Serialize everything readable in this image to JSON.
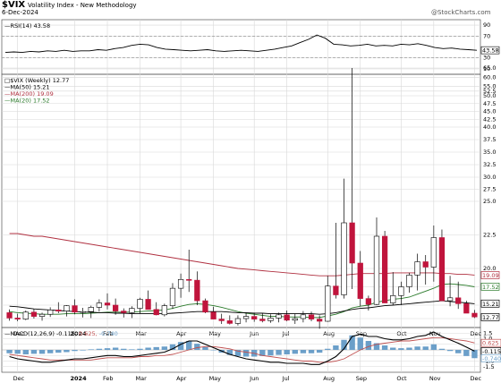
{
  "header": {
    "title": "$VIX",
    "subtitle": "Volatility Index - New Methodology",
    "date": "6-Dec-2024",
    "credit": "@StockCharts.com"
  },
  "colors": {
    "up_candle": "#ffffff",
    "down_candle": "#c0143c",
    "ma50": "#000000",
    "ma200": "#b03040",
    "ma20": "#2a7a2a",
    "rsi_line": "#000000",
    "macd_line": "#000000",
    "macd_signal": "#c05050",
    "macd_hist": "#6b9fc9",
    "grid": "#d8d8d8"
  },
  "chart_data": [
    {
      "type": "line",
      "panel": "rsi",
      "legend": "RSI(14) 43.58",
      "last_value": "43.58",
      "ylim": [
        0,
        100
      ],
      "y_ticks": [
        "90",
        "70",
        "30",
        "10"
      ],
      "levels": [
        70,
        30
      ],
      "values": [
        40,
        41,
        40,
        42,
        41,
        43,
        42,
        44,
        42,
        43,
        43,
        45,
        44,
        47,
        49,
        53,
        55,
        54,
        49,
        46,
        45,
        44,
        43,
        44,
        45,
        43,
        42,
        43,
        44,
        43,
        42,
        44,
        46,
        49,
        52,
        58,
        64,
        72,
        66,
        55,
        54,
        52,
        53,
        55,
        52,
        53,
        52,
        55,
        54,
        56,
        53,
        49,
        47,
        48,
        46,
        45,
        44
      ]
    },
    {
      "type": "candlestick",
      "panel": "price",
      "legend": {
        "title": "$VIX (Weekly) 12.77",
        "series": [
          "MA(50) 15.21",
          "MA(200) 19.09",
          "MA(20) 17.52"
        ]
      },
      "y_ticks": [
        "65.0",
        "60.0",
        "55.0",
        "52.5",
        "50.0",
        "47.5",
        "45.0",
        "42.5",
        "40.0",
        "37.5",
        "35.0",
        "32.5",
        "30.0",
        "27.5",
        "25.0",
        "22.5",
        "20.0",
        "17.5",
        "15.0",
        "12.5"
      ],
      "value_labels": [
        "19.09",
        "17.52",
        "15.21",
        "12.77"
      ],
      "x_ticks": [
        "Dec",
        "2024",
        "Feb",
        "Mar",
        "Apr",
        "May",
        "Jun",
        "Jul",
        "Aug",
        "Sep",
        "Oct",
        "Nov",
        "Dec"
      ],
      "ohlc": [
        [
          13.6,
          14.2,
          12.1,
          12.6
        ],
        [
          12.6,
          13.4,
          12.0,
          12.4
        ],
        [
          12.4,
          14.0,
          12.2,
          13.7
        ],
        [
          13.7,
          14.3,
          12.5,
          12.9
        ],
        [
          12.9,
          13.6,
          12.1,
          13.3
        ],
        [
          13.3,
          14.6,
          12.8,
          14.1
        ],
        [
          14.1,
          15.4,
          13.5,
          13.9
        ],
        [
          13.9,
          15.0,
          12.9,
          14.9
        ],
        [
          14.9,
          15.8,
          13.3,
          13.7
        ],
        [
          13.7,
          14.5,
          12.7,
          13.8
        ],
        [
          13.8,
          14.9,
          12.6,
          14.6
        ],
        [
          14.6,
          15.8,
          13.8,
          15.3
        ],
        [
          15.3,
          16.6,
          14.2,
          15.0
        ],
        [
          15.0,
          15.9,
          13.2,
          13.9
        ],
        [
          13.9,
          14.4,
          12.7,
          13.6
        ],
        [
          13.6,
          14.8,
          12.6,
          14.4
        ],
        [
          14.4,
          16.0,
          13.5,
          15.8
        ],
        [
          15.8,
          17.0,
          14.5,
          14.2
        ],
        [
          14.2,
          15.4,
          13.1,
          13.2
        ],
        [
          13.2,
          15.2,
          12.9,
          14.9
        ],
        [
          14.9,
          18.0,
          14.3,
          17.3
        ],
        [
          17.3,
          19.3,
          16.0,
          18.5
        ],
        [
          18.5,
          21.4,
          16.8,
          18.4
        ],
        [
          18.4,
          19.6,
          15.0,
          15.6
        ],
        [
          15.6,
          15.9,
          13.5,
          13.7
        ],
        [
          13.7,
          14.7,
          12.4,
          12.4
        ],
        [
          12.4,
          13.4,
          11.5,
          12.1
        ],
        [
          12.1,
          13.1,
          11.4,
          11.6
        ],
        [
          11.6,
          13.1,
          11.2,
          12.5
        ],
        [
          12.5,
          13.6,
          11.8,
          12.9
        ],
        [
          12.9,
          13.6,
          11.9,
          12.4
        ],
        [
          12.4,
          13.5,
          11.8,
          12.1
        ],
        [
          12.1,
          13.3,
          11.7,
          12.6
        ],
        [
          12.6,
          13.6,
          11.8,
          13.2
        ],
        [
          13.2,
          14.0,
          12.0,
          12.2
        ],
        [
          12.2,
          13.4,
          11.5,
          12.5
        ],
        [
          12.5,
          13.9,
          11.8,
          13.2
        ],
        [
          13.2,
          13.8,
          12.0,
          12.4
        ],
        [
          12.4,
          13.1,
          10.6,
          12.0
        ],
        [
          12.0,
          19.0,
          11.9,
          17.6
        ],
        [
          17.6,
          23.4,
          15.9,
          16.4
        ],
        [
          16.4,
          29.7,
          15.9,
          23.4
        ],
        [
          23.4,
          65.7,
          17.2,
          20.4
        ],
        [
          20.4,
          21.3,
          14.8,
          15.9
        ],
        [
          15.9,
          16.3,
          14.0,
          15.1
        ],
        [
          15.1,
          23.8,
          15.0,
          22.4
        ],
        [
          22.4,
          22.8,
          15.3,
          15.3
        ],
        [
          15.3,
          19.5,
          15.0,
          16.3
        ],
        [
          16.3,
          18.2,
          15.0,
          17.5
        ],
        [
          17.5,
          19.4,
          16.7,
          19.1
        ],
        [
          19.1,
          21.1,
          17.0,
          20.5
        ],
        [
          20.5,
          21.0,
          17.8,
          20.1
        ],
        [
          20.1,
          23.2,
          18.2,
          22.3
        ],
        [
          22.3,
          22.9,
          15.8,
          15.6
        ],
        [
          15.6,
          19.0,
          14.8,
          16.0
        ],
        [
          16.0,
          18.2,
          14.3,
          15.2
        ],
        [
          15.2,
          15.6,
          13.9,
          13.5
        ],
        [
          13.5,
          14.1,
          12.6,
          12.8
        ]
      ],
      "ma50": [
        14.8,
        14.7,
        14.5,
        14.3,
        14.2,
        14.1,
        14.0,
        13.9,
        13.8,
        13.7,
        13.7,
        13.6,
        13.6,
        13.5,
        13.5,
        13.4,
        13.4,
        13.4,
        13.4,
        13.4,
        13.5,
        13.6,
        13.7,
        13.8,
        13.8,
        13.8,
        13.8,
        13.7,
        13.6,
        13.6,
        13.5,
        13.5,
        13.4,
        13.4,
        13.4,
        13.4,
        13.4,
        13.4,
        13.3,
        13.4,
        13.6,
        13.9,
        14.2,
        14.4,
        14.5,
        14.7,
        14.9,
        15.0,
        15.1,
        15.2,
        15.3,
        15.4,
        15.5,
        15.6,
        15.5,
        15.4,
        15.3,
        15.2
      ],
      "ma200": [
        22.6,
        22.6,
        22.5,
        22.4,
        22.4,
        22.3,
        22.2,
        22.1,
        22.0,
        21.9,
        21.8,
        21.7,
        21.6,
        21.5,
        21.4,
        21.3,
        21.2,
        21.1,
        21.0,
        20.9,
        20.8,
        20.7,
        20.6,
        20.5,
        20.4,
        20.3,
        20.2,
        20.1,
        20.0,
        19.9,
        19.8,
        19.7,
        19.6,
        19.5,
        19.4,
        19.3,
        19.2,
        19.1,
        19.0,
        19.0,
        19.0,
        19.1,
        19.2,
        19.3,
        19.3,
        19.3,
        19.3,
        19.4,
        19.4,
        19.4,
        19.4,
        19.4,
        19.4,
        19.3,
        19.3,
        19.2,
        19.2,
        19.1
      ],
      "ma20": [
        13.8,
        13.6,
        13.5,
        13.4,
        13.3,
        13.3,
        13.3,
        13.4,
        13.4,
        13.4,
        13.5,
        13.6,
        13.7,
        13.7,
        13.7,
        13.7,
        13.8,
        13.9,
        14.0,
        14.1,
        14.4,
        14.8,
        15.1,
        15.2,
        15.1,
        14.9,
        14.6,
        14.2,
        13.8,
        13.5,
        13.3,
        13.1,
        12.9,
        12.9,
        12.8,
        12.8,
        12.8,
        12.7,
        12.7,
        13.0,
        13.3,
        13.8,
        14.5,
        14.8,
        15.0,
        15.4,
        15.6,
        15.8,
        15.9,
        16.1,
        16.5,
        16.9,
        17.3,
        17.8,
        17.9,
        17.8,
        17.7,
        17.5
      ]
    },
    {
      "type": "bar",
      "panel": "macd",
      "legend": {
        "title": "MACD(12,26,9)",
        "values": [
          "-0.115",
          "0.625",
          "-0.740"
        ]
      },
      "ylim": [
        -2.0,
        2.0
      ],
      "y_ticks": [
        "1.5",
        "1.0",
        "0.5",
        "-0.5",
        "-1.0",
        "-1.5"
      ],
      "value_labels": [
        "0.625",
        "-0.115",
        "-0.740"
      ],
      "macd": [
        -0.6,
        -0.8,
        -0.9,
        -1.0,
        -1.1,
        -1.1,
        -1.0,
        -0.9,
        -0.8,
        -0.8,
        -0.7,
        -0.6,
        -0.5,
        -0.5,
        -0.6,
        -0.6,
        -0.5,
        -0.4,
        -0.3,
        -0.2,
        0.1,
        0.5,
        0.8,
        0.8,
        0.5,
        0.2,
        -0.1,
        -0.4,
        -0.6,
        -0.8,
        -0.9,
        -1.0,
        -1.1,
        -1.1,
        -1.2,
        -1.2,
        -1.2,
        -1.3,
        -1.3,
        -1.0,
        -0.6,
        0.1,
        1.2,
        1.4,
        1.2,
        1.2,
        1.0,
        0.9,
        0.9,
        1.0,
        1.2,
        1.3,
        1.6,
        1.2,
        0.9,
        0.6,
        0.25,
        -0.115
      ],
      "signal": [
        -0.4,
        -0.5,
        -0.6,
        -0.7,
        -0.8,
        -0.9,
        -0.9,
        -0.9,
        -0.9,
        -0.9,
        -0.9,
        -0.8,
        -0.7,
        -0.7,
        -0.7,
        -0.7,
        -0.6,
        -0.6,
        -0.5,
        -0.5,
        -0.4,
        -0.2,
        0.0,
        0.2,
        0.3,
        0.3,
        0.2,
        0.1,
        -0.1,
        -0.2,
        -0.3,
        -0.5,
        -0.6,
        -0.7,
        -0.8,
        -0.9,
        -1.0,
        -1.0,
        -1.1,
        -1.1,
        -1.0,
        -0.8,
        -0.4,
        0.0,
        0.3,
        0.5,
        0.6,
        0.7,
        0.8,
        0.8,
        0.9,
        1.0,
        1.1,
        1.1,
        1.0,
        0.9,
        0.8,
        0.625
      ],
      "histogram": [
        -0.3,
        -0.35,
        -0.4,
        -0.35,
        -0.35,
        -0.3,
        -0.25,
        -0.2,
        -0.1,
        -0.05,
        0.05,
        0.1,
        0.15,
        0.2,
        0.1,
        0.05,
        0.1,
        0.2,
        0.25,
        0.3,
        0.5,
        0.7,
        0.8,
        0.55,
        0.25,
        0.0,
        -0.25,
        -0.45,
        -0.55,
        -0.6,
        -0.6,
        -0.55,
        -0.5,
        -0.45,
        -0.4,
        -0.35,
        -0.3,
        -0.3,
        -0.25,
        0.1,
        0.4,
        0.9,
        1.3,
        1.1,
        0.8,
        0.6,
        0.4,
        0.2,
        0.15,
        0.2,
        0.3,
        0.3,
        0.5,
        0.1,
        -0.1,
        -0.3,
        -0.55,
        -0.74
      ]
    }
  ]
}
